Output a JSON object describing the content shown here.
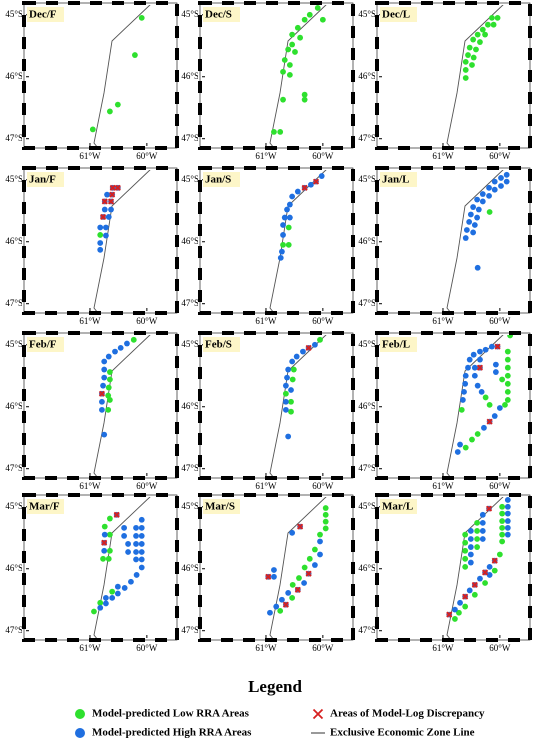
{
  "map": {
    "xlim": [
      -62.16,
      -59.47
    ],
    "ylim": [
      -44.81,
      -47.15
    ],
    "xticks": [
      {
        "value": -61,
        "label": "61°W"
      },
      {
        "value": -60,
        "label": "60°W"
      }
    ],
    "yticks": [
      {
        "value": -45,
        "label": "45°S"
      },
      {
        "value": -46,
        "label": "46°S"
      },
      {
        "value": -47,
        "label": "47°S"
      }
    ],
    "panels": [
      {
        "label": "Dec/F",
        "series": [
          {
            "lon": [
              -60.09,
              -60.21,
              -60.51,
              -60.65,
              -60.95
            ],
            "lat": [
              -45.05,
              -45.65,
              -46.45,
              -46.56,
              -46.85
            ]
          },
          {
            "lon": [],
            "lat": []
          },
          {
            "lon": [],
            "lat": []
          }
        ]
      },
      {
        "label": "Dec/S",
        "series": [
          {
            "lon": [
              -60.09,
              -60.0,
              -60.23,
              -60.32,
              -60.44,
              -60.54,
              -60.4,
              -60.54,
              -60.61,
              -60.49,
              -60.67,
              -60.58,
              -60.7,
              -60.58,
              -60.32,
              -60.32,
              -60.7,
              -60.75,
              -60.86
            ],
            "lat": [
              -44.89,
              -45.08,
              -45.0,
              -45.08,
              -45.21,
              -45.32,
              -45.37,
              -45.48,
              -45.56,
              -45.6,
              -45.73,
              -45.81,
              -45.92,
              -45.97,
              -46.29,
              -46.37,
              -46.37,
              -46.89,
              -46.89
            ]
          },
          {
            "lon": [],
            "lat": []
          },
          {
            "lon": [],
            "lat": []
          }
        ]
      },
      {
        "label": "Dec/L",
        "series": [
          {
            "lon": [
              -60.14,
              -60.04,
              -60.21,
              -60.11,
              -60.3,
              -60.39,
              -60.26,
              -60.47,
              -60.35,
              -60.53,
              -60.42,
              -60.56,
              -60.46,
              -60.6,
              -60.49,
              -60.6,
              -60.6
            ],
            "lat": [
              -45.05,
              -45.05,
              -45.16,
              -45.16,
              -45.24,
              -45.32,
              -45.32,
              -45.4,
              -45.44,
              -45.53,
              -45.56,
              -45.65,
              -45.69,
              -45.76,
              -45.81,
              -45.89,
              -46.02
            ]
          },
          {
            "lon": [],
            "lat": []
          },
          {
            "lon": [],
            "lat": []
          }
        ]
      },
      {
        "label": "Jan/F",
        "series": [
          {
            "lon": [
              -60.82
            ],
            "lat": [
              -45.89
            ]
          },
          {
            "lon": [
              -60.7,
              -60.74,
              -60.63,
              -60.67,
              -60.82,
              -60.72,
              -60.72,
              -60.82,
              -60.82
            ],
            "lat": [
              -45.24,
              -45.48,
              -45.48,
              -45.6,
              -45.77,
              -45.77,
              -45.9,
              -46.02,
              -46.13
            ]
          },
          {
            "lon": [
              -60.6,
              -60.51,
              -60.61,
              -60.74,
              -60.63,
              -60.77
            ],
            "lat": [
              -45.13,
              -45.13,
              -45.24,
              -45.35,
              -45.35,
              -45.6
            ]
          }
        ]
      },
      {
        "label": "Jan/S",
        "series": [
          {
            "lon": [
              -60.6,
              -60.7,
              -60.6
            ],
            "lat": [
              -45.77,
              -46.05,
              -46.05
            ]
          },
          {
            "lon": [
              -60.02,
              -60.21,
              -60.44,
              -60.54,
              -60.58,
              -60.63,
              -60.67,
              -60.58,
              -60.7,
              -60.7,
              -60.72,
              -60.74
            ],
            "lat": [
              -44.94,
              -45.08,
              -45.19,
              -45.27,
              -45.4,
              -45.48,
              -45.61,
              -45.61,
              -45.73,
              -45.89,
              -46.16,
              -46.26
            ]
          },
          {
            "lon": [
              -60.12,
              -60.32
            ],
            "lat": [
              -45.03,
              -45.13
            ]
          }
        ]
      },
      {
        "label": "Jan/L",
        "series": [
          {
            "lon": [
              -60.18
            ],
            "lat": [
              -45.52
            ]
          },
          {
            "lon": [
              -59.88,
              -59.98,
              -59.88,
              -60.09,
              -59.98,
              -60.19,
              -60.09,
              -60.3,
              -60.19,
              -60.4,
              -60.3,
              -60.47,
              -60.37,
              -60.51,
              -60.4,
              -60.54,
              -60.44,
              -60.58,
              -60.47,
              -60.6,
              -60.39
            ],
            "lat": [
              -44.92,
              -44.97,
              -45.03,
              -45.03,
              -45.1,
              -45.13,
              -45.16,
              -45.23,
              -45.26,
              -45.32,
              -45.35,
              -45.44,
              -45.48,
              -45.56,
              -45.61,
              -45.68,
              -45.73,
              -45.81,
              -45.85,
              -45.94,
              -46.42
            ]
          },
          {
            "lon": [],
            "lat": []
          }
        ]
      },
      {
        "label": "Feb/F",
        "series": [
          {
            "lon": [
              -60.23,
              -60.65,
              -60.65,
              -60.67,
              -60.68,
              -60.65,
              -60.68
            ],
            "lat": [
              -44.92,
              -45.44,
              -45.56,
              -45.69,
              -45.82,
              -45.89,
              -46.05
            ]
          },
          {
            "lon": [
              -60.35,
              -60.46,
              -60.56,
              -60.67,
              -60.75,
              -60.75,
              -60.75,
              -60.77,
              -60.79,
              -60.79,
              -60.75
            ],
            "lat": [
              -44.98,
              -45.05,
              -45.11,
              -45.19,
              -45.27,
              -45.4,
              -45.53,
              -45.66,
              -45.92,
              -46.05,
              -46.45
            ]
          },
          {
            "lon": [
              -60.79
            ],
            "lat": [
              -45.79
            ]
          }
        ]
      },
      {
        "label": "Feb/S",
        "series": [
          {
            "lon": [
              -60.05,
              -60.51,
              -60.53,
              -60.65,
              -60.56,
              -60.56
            ],
            "lat": [
              -44.92,
              -45.4,
              -45.56,
              -45.79,
              -45.92,
              -46.08
            ]
          },
          {
            "lon": [
              -60.14,
              -60.35,
              -60.46,
              -60.54,
              -60.61,
              -60.63,
              -60.65,
              -60.56,
              -60.65,
              -60.65,
              -60.61
            ],
            "lat": [
              -45.0,
              -45.11,
              -45.19,
              -45.27,
              -45.4,
              -45.53,
              -45.66,
              -45.73,
              -45.92,
              -46.05,
              -46.48
            ]
          },
          {
            "lon": [
              -60.25
            ],
            "lat": [
              -45.05
            ]
          }
        ]
      },
      {
        "label": "Feb/L",
        "series": [
          {
            "lon": [
              -59.82,
              -60.67,
              -60.6,
              -60.49,
              -60.39,
              -59.86,
              -59.86,
              -59.86,
              -59.86,
              -59.86,
              -59.86,
              -59.86,
              -59.91,
              -60.25,
              -60.18,
              -59.96
            ],
            "lat": [
              -44.85,
              -46.05,
              -46.66,
              -46.53,
              -46.44,
              -45.11,
              -45.24,
              -45.37,
              -45.5,
              -45.63,
              -45.76,
              -45.89,
              -45.97,
              -45.85,
              -45.97,
              -45.56
            ]
          },
          {
            "lon": [
              -60.14,
              -60.25,
              -60.35,
              -60.46,
              -60.53,
              -60.56,
              -60.6,
              -60.61,
              -60.63,
              -60.65,
              -60.7,
              -60.74,
              -60.28,
              -60.09,
              -60.0,
              -60.35,
              -60.44,
              -60.44,
              -60.39,
              -60.32,
              -60.07,
              -60.07
            ],
            "lat": [
              -45.03,
              -45.08,
              -45.11,
              -45.16,
              -45.24,
              -45.37,
              -45.5,
              -45.63,
              -45.76,
              -45.89,
              -46.61,
              -46.73,
              -46.34,
              -46.15,
              -46.02,
              -45.24,
              -45.37,
              -45.5,
              -45.66,
              -45.76,
              -45.32,
              -45.44
            ]
          },
          {
            "lon": [
              -60.04,
              -60.18,
              -60.35
            ],
            "lat": [
              -45.03,
              -46.24,
              -45.37
            ]
          }
        ]
      },
      {
        "label": "Mar/F",
        "series": [
          {
            "lon": [
              -60.65,
              -60.74,
              -60.77,
              -60.67,
              -60.65,
              -60.65,
              -60.93,
              -60.61,
              -60.82
            ],
            "lat": [
              -45.19,
              -45.32,
              -45.84,
              -45.84,
              -45.71,
              -45.45,
              -46.69,
              -46.37,
              -46.55
            ]
          },
          {
            "lon": [
              -60.74,
              -60.75,
              -60.09,
              -60.09,
              -60.09,
              -60.09,
              -60.09,
              -60.09,
              -60.09,
              -60.19,
              -60.19,
              -60.19,
              -60.19,
              -60.19,
              -60.4,
              -60.4,
              -60.33,
              -60.33,
              -60.18,
              -60.28,
              -60.39,
              -60.51,
              -60.61,
              -60.72,
              -60.82,
              -60.51,
              -60.72
            ],
            "lat": [
              -45.45,
              -45.71,
              -45.21,
              -45.34,
              -45.47,
              -45.6,
              -45.73,
              -45.85,
              -45.98,
              -45.34,
              -45.47,
              -45.6,
              -45.73,
              -45.85,
              -45.34,
              -45.47,
              -45.6,
              -45.73,
              -46.1,
              -46.21,
              -46.31,
              -46.4,
              -46.47,
              -46.56,
              -46.63,
              -46.29,
              -46.47
            ]
          },
          {
            "lon": [
              -60.53,
              -60.75
            ],
            "lat": [
              -45.13,
              -45.58
            ]
          }
        ]
      },
      {
        "label": "Mar/S",
        "series": [
          {
            "lon": [
              -59.95,
              -59.95,
              -59.95,
              -59.95,
              -60.05,
              -60.14,
              -60.23,
              -60.32,
              -60.42,
              -60.53,
              -60.54,
              -60.75
            ],
            "lat": [
              -45.02,
              -45.13,
              -45.24,
              -45.35,
              -45.45,
              -45.69,
              -45.84,
              -45.98,
              -46.15,
              -46.26,
              -46.47,
              -46.68
            ]
          },
          {
            "lon": [
              -60.05,
              -60.54,
              -60.05,
              -60.14,
              -60.33,
              -60.61,
              -60.72,
              -60.82,
              -60.93,
              -60.86,
              -60.86
            ],
            "lat": [
              -45.56,
              -45.42,
              -45.77,
              -45.94,
              -46.23,
              -46.39,
              -46.5,
              -46.61,
              -46.71,
              -46.02,
              -46.13
            ]
          },
          {
            "lon": [
              -60.4,
              -60.25,
              -60.44,
              -60.65,
              -60.96
            ],
            "lat": [
              -45.32,
              -46.08,
              -46.34,
              -46.58,
              -46.13
            ]
          }
        ]
      },
      {
        "label": "Mar/L",
        "series": [
          {
            "lon": [
              -59.96,
              -59.96,
              -59.96,
              -59.96,
              -59.96,
              -59.96,
              -60.61,
              -60.61,
              -60.61,
              -60.61,
              -60.61,
              -60.4,
              -60.4,
              -60.4,
              -60.4,
              -60.0,
              -60.09,
              -60.26,
              -60.44,
              -60.61,
              -60.72,
              -60.79
            ],
            "lat": [
              -45.0,
              -45.11,
              -45.23,
              -45.34,
              -45.45,
              -45.56,
              -45.45,
              -45.58,
              -45.71,
              -45.84,
              -45.97,
              -45.26,
              -45.39,
              -45.52,
              -45.65,
              -45.77,
              -46.03,
              -46.23,
              -46.42,
              -46.61,
              -46.71,
              -46.81
            ]
          },
          {
            "lon": [
              -59.86,
              -59.86,
              -59.86,
              -59.86,
              -59.86,
              -59.86,
              -60.51,
              -60.51,
              -60.51,
              -60.51,
              -60.51,
              -60.3,
              -60.3,
              -60.3,
              -60.3,
              -60.18,
              -60.35,
              -60.53,
              -60.7,
              -60.79,
              -60.18
            ],
            "lat": [
              -44.89,
              -45.0,
              -45.11,
              -45.23,
              -45.34,
              -45.45,
              -45.39,
              -45.52,
              -45.65,
              -45.77,
              -45.9,
              -45.13,
              -45.26,
              -45.39,
              -45.52,
              -45.97,
              -46.16,
              -46.35,
              -46.55,
              -46.66,
              -46.1
            ]
          },
          {
            "lon": [
              -60.19,
              -60.09,
              -60.26,
              -60.44,
              -60.61,
              -60.89
            ],
            "lat": [
              -45.03,
              -45.87,
              -46.06,
              -46.26,
              -46.45,
              -46.74
            ]
          }
        ]
      }
    ]
  },
  "legend": {
    "title": "Legend",
    "items": [
      {
        "name": "Model-predicted Low RRA Areas",
        "color": "#2ee02e"
      },
      {
        "name": "Model-predicted High RRA Areas",
        "color": "#1f6fe0"
      },
      {
        "name": "Areas of Model-Log Discrepancy",
        "color": "#d62020"
      },
      {
        "name": "Exclusive Economic Zone Line",
        "color": "#555555"
      }
    ]
  }
}
